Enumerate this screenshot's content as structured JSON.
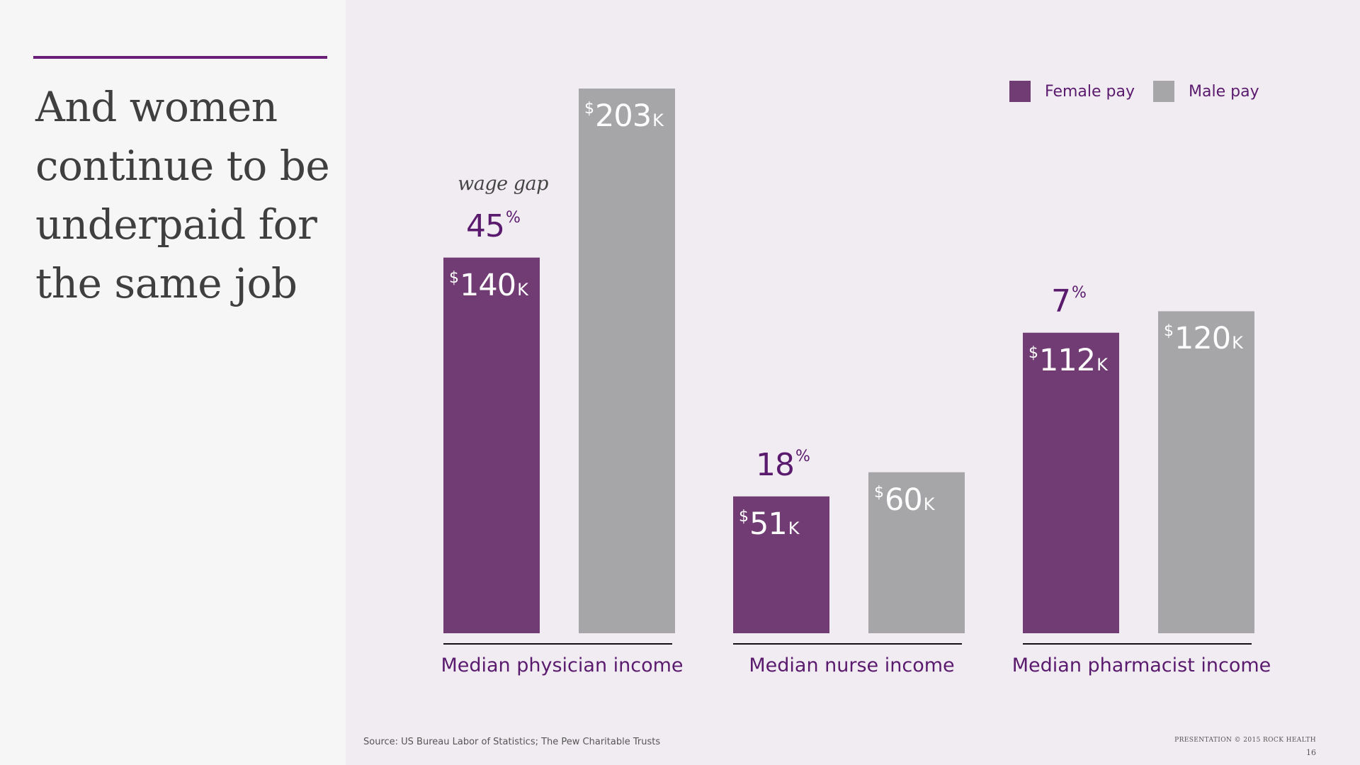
{
  "title": "And women continue to be underpaid for the same job",
  "colors": {
    "female": "#703c73",
    "male": "#a6a6a8",
    "accent": "#6a2078",
    "text_purple": "#5a1a6e"
  },
  "legend": [
    {
      "label": "Female pay",
      "color": "#703c73"
    },
    {
      "label": "Male pay",
      "color": "#a6a6a8"
    }
  ],
  "wage_gap_caption": "wage gap",
  "source": "Source: US Bureau Labor of Statistics; The Pew Charitable Trusts",
  "copyright": "PRESENTATION © 2015 ROCK HEALTH",
  "page_number": "16",
  "value_prefix": "$",
  "value_suffix": "K",
  "percent_sign": "%",
  "chart_data": {
    "type": "bar",
    "title": "And women continue to be underpaid for the same job",
    "xlabel": "",
    "ylabel": "",
    "units": "$K",
    "grid": false,
    "ylim": [
      0,
      203
    ],
    "legend_position": "top-right",
    "categories": [
      "Median physician income",
      "Median nurse income",
      "Median pharmacist income"
    ],
    "series": [
      {
        "name": "Female pay",
        "values": [
          140,
          51,
          112
        ]
      },
      {
        "name": "Male pay",
        "values": [
          203,
          60,
          120
        ]
      }
    ],
    "wage_gap_percent": [
      "45",
      "18",
      "7"
    ]
  }
}
